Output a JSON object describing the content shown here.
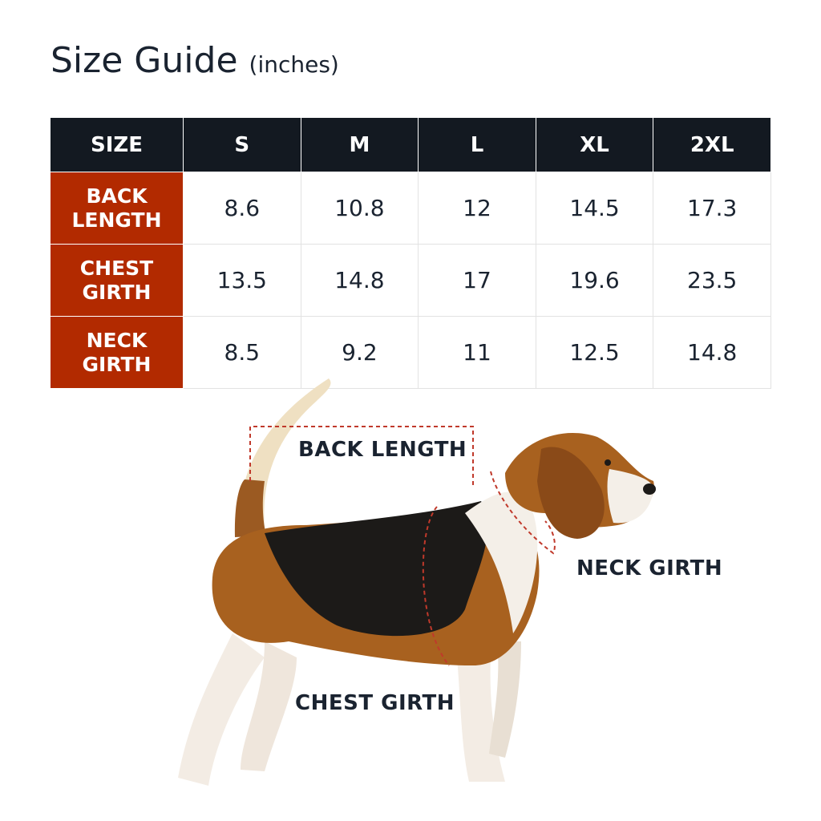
{
  "title": {
    "main": "Size Guide",
    "unit": "(inches)"
  },
  "table": {
    "headers": [
      "SIZE",
      "S",
      "M",
      "L",
      "XL",
      "2XL"
    ],
    "rows": [
      {
        "label_line1": "BACK",
        "label_line2": "LENGTH",
        "values": [
          "8.6",
          "10.8",
          "12",
          "14.5",
          "17.3"
        ]
      },
      {
        "label_line1": "CHEST",
        "label_line2": "GIRTH",
        "values": [
          "13.5",
          "14.8",
          "17",
          "19.6",
          "23.5"
        ]
      },
      {
        "label_line1": "NECK",
        "label_line2": "GIRTH",
        "values": [
          "8.5",
          "9.2",
          "11",
          "12.5",
          "14.8"
        ]
      }
    ]
  },
  "diagram": {
    "back_length": "BACK LENGTH",
    "neck_girth": "NECK GIRTH",
    "chest_girth": "CHEST GIRTH"
  },
  "colors": {
    "header_bg": "#131921",
    "row_header_bg": "#b22a00",
    "measure_line": "#c0392b"
  }
}
